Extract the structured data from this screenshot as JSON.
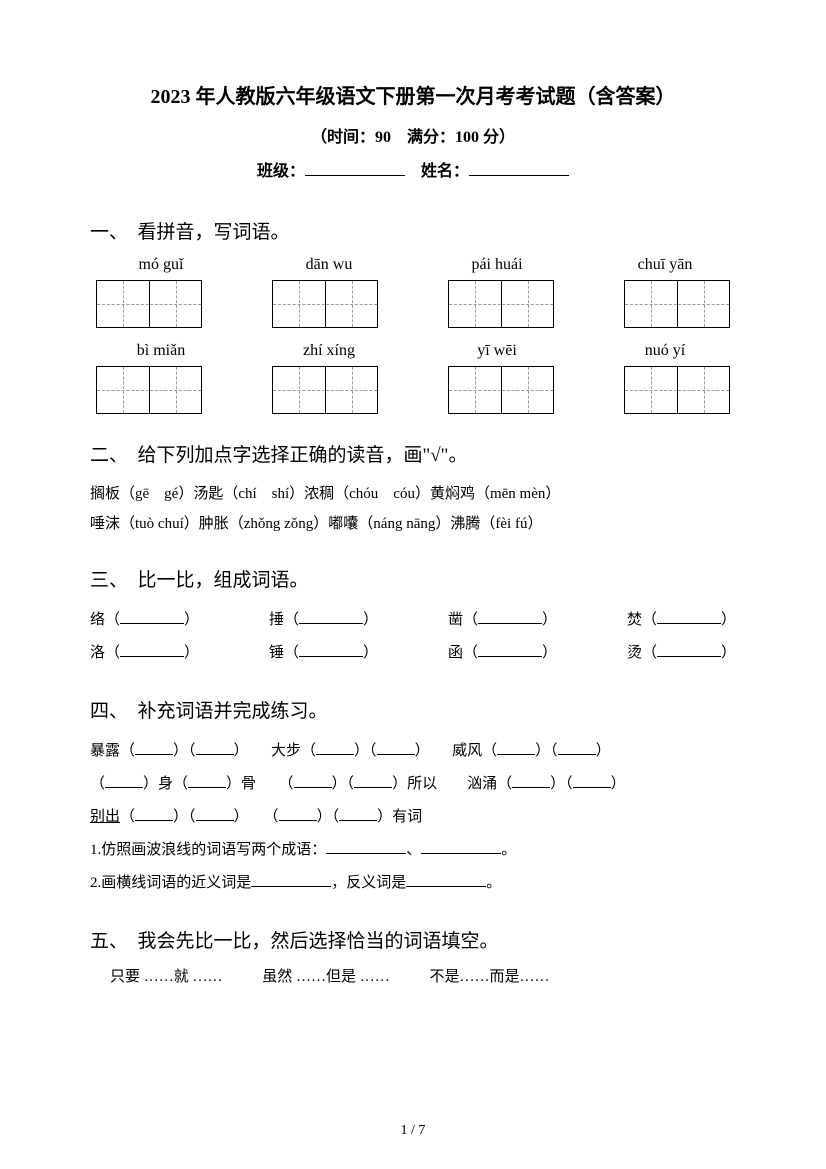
{
  "title": "2023 年人教版六年级语文下册第一次月考考试题（含答案）",
  "subtitle": "（时间：90　满分：100 分）",
  "fill_labels": {
    "class": "班级：",
    "name": "姓名："
  },
  "section1": {
    "title": "一、　看拼音，写词语。",
    "row1": [
      "mó guǐ",
      "dān wu",
      "pái huái",
      "chuī yān"
    ],
    "row2": [
      "bì miǎn",
      "zhí xíng",
      "yī wēi",
      "nuó yí"
    ]
  },
  "section2": {
    "title": "二、　给下列加点字选择正确的读音，画\"√\"。",
    "line1": "搁板（gē　gé）汤匙（chí　shí）浓稠（chóu　cóu）黄焖鸡（mēn mèn）",
    "line2": "唾沫（tuò chuí）肿胀（zhǒng zǒng）嘟囔（náng nāng）沸腾（fèi fú）"
  },
  "section3": {
    "title": "三、　比一比，组成词语。",
    "row1": [
      "络（",
      "捶（",
      "凿（",
      "焚（"
    ],
    "row2": [
      "洛（",
      "锤（",
      "函（",
      "烫（"
    ]
  },
  "section4": {
    "title": "四、　补充词语并完成练习。",
    "line1_parts": [
      "暴露（",
      "）（",
      "）　　大步（",
      "）（",
      "）　　威风（",
      "）（",
      "）"
    ],
    "line2_parts": [
      "（",
      "）身（",
      "）骨　　（",
      "）（",
      "）所以　　汹涌（",
      "）（",
      "）"
    ],
    "line3_parts": [
      "别出",
      "（",
      "）（",
      "）　　（",
      "）（",
      "）有词"
    ],
    "q1": "1.仿照画波浪线的词语写两个成语：",
    "q2a": "2.画横线词语的近义词是",
    "q2b": "，反义词是"
  },
  "section5": {
    "title": "五、　我会先比一比，然后选择恰当的词语填空。",
    "opt1": "只要 ……就 ……",
    "opt2": "虽然 ……但是 ……",
    "opt3": "不是……而是……"
  },
  "page_number": "1 / 7",
  "colors": {
    "text": "#000000",
    "bg": "#ffffff",
    "dash": "#999999"
  }
}
